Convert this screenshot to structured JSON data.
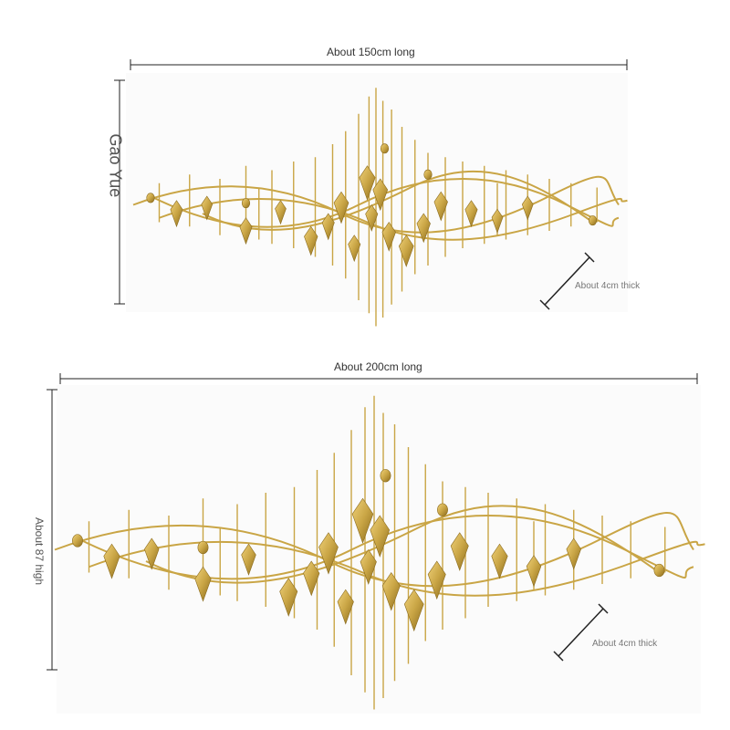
{
  "top": {
    "length_label": "About 150cm long",
    "height_label": "Gao Yue",
    "thickness_label": "About 4cm thick"
  },
  "bottom": {
    "length_label": "About 200cm long",
    "height_label": "About 87 high",
    "thickness_label": "About 4cm thick"
  },
  "colors": {
    "gold": "#c9a545",
    "gold_dark": "#8a6a1c",
    "gold_light": "#f0d27a",
    "dim_line": "#222222"
  },
  "items": [
    {
      "name": "top-wall-art",
      "depicts": "gold metal wave wall sculpture with crystal drops"
    },
    {
      "name": "bottom-wall-art",
      "depicts": "gold metal wave wall sculpture with crystal drops"
    }
  ]
}
